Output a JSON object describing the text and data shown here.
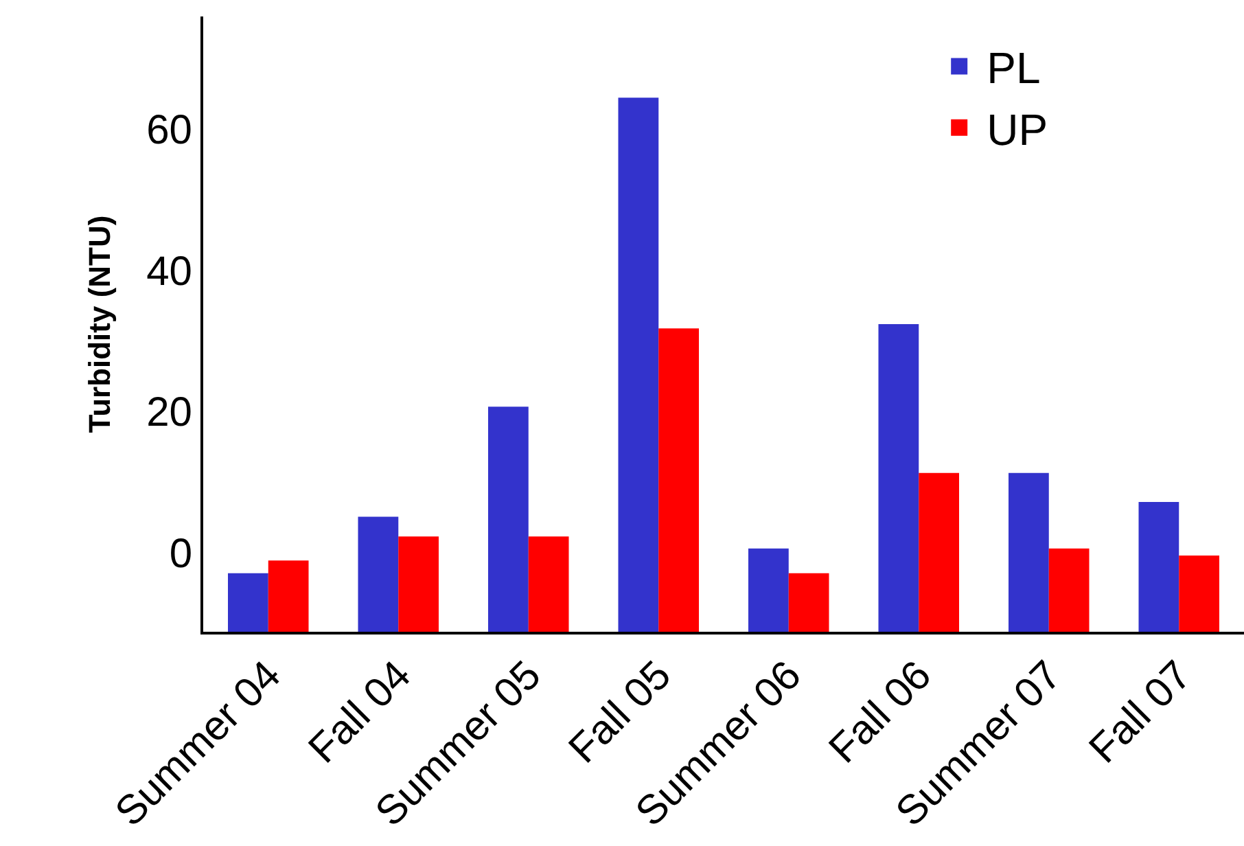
{
  "chart_data": {
    "type": "bar",
    "ylabel": "Turbidity (NTU)",
    "categories": [
      "Summer 04",
      "Fall 04",
      "Summer 05",
      "Fall 05",
      "Summer 06",
      "Fall 06",
      "Summer 07",
      "Fall 07"
    ],
    "series": [
      {
        "name": "PL",
        "color": "#3333cc",
        "values": [
          8.3,
          16.3,
          31.9,
          75.7,
          11.8,
          43.6,
          22.5,
          18.4
        ],
        "base": [
          -11.2,
          -11.2,
          -11.2,
          -11.2,
          -11.2,
          -11.2,
          -11.2,
          -11.2
        ]
      },
      {
        "name": "UP",
        "color": "#ff0000",
        "values": [
          10.1,
          13.5,
          13.5,
          43.0,
          8.3,
          22.5,
          11.8,
          10.8
        ],
        "base": [
          -11.2,
          -11.2,
          -11.2,
          -11.2,
          -11.2,
          -11.2,
          -11.2,
          -11.2
        ]
      }
    ],
    "ylim": [
      -11.2,
      76
    ],
    "yticks": [
      0,
      20,
      40,
      60
    ],
    "legend": "top right"
  }
}
